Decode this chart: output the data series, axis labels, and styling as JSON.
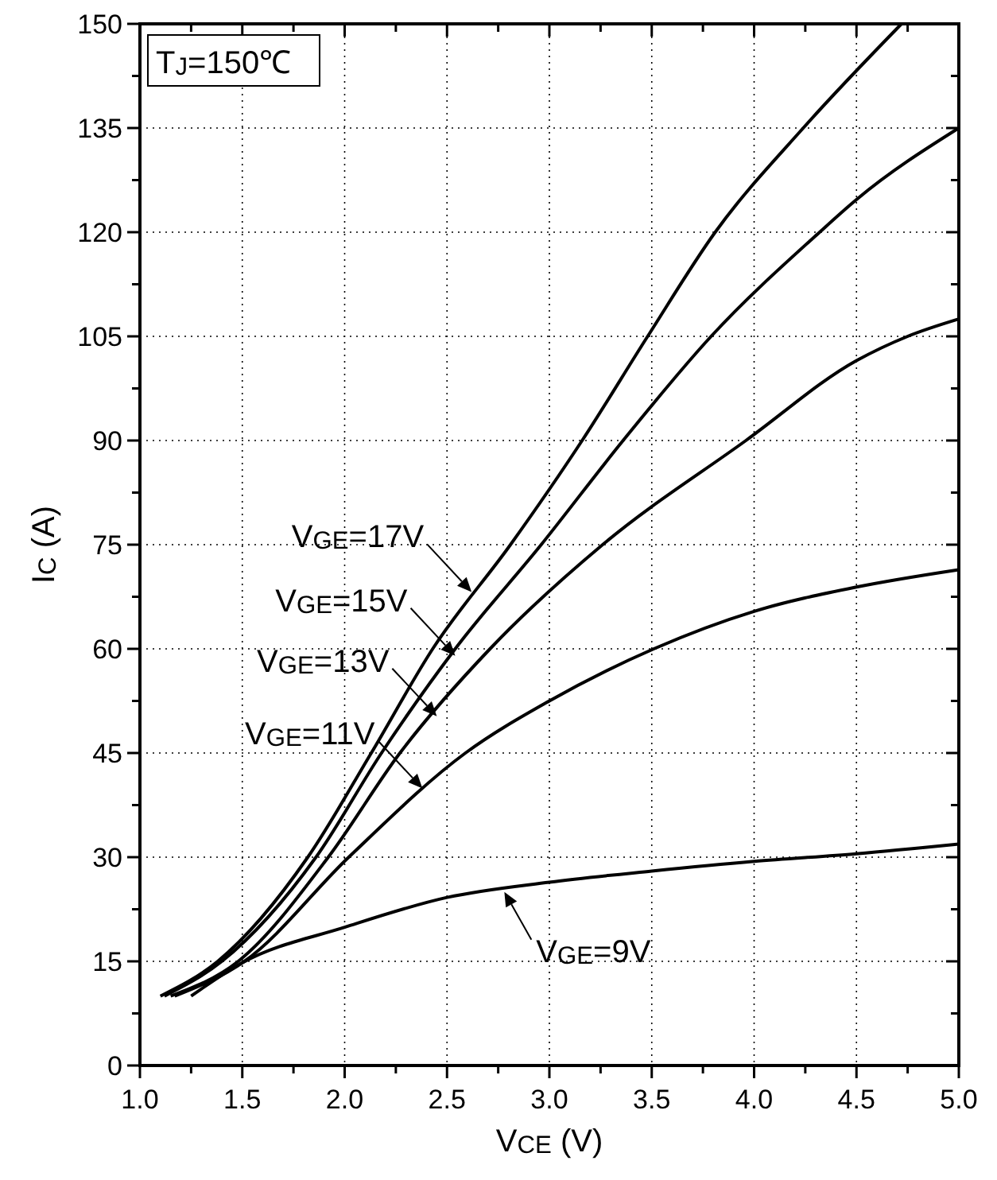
{
  "chart_data": {
    "type": "line",
    "xlabel": "V$_{CE}$ (V)",
    "ylabel": "I$_{C}$ (A)",
    "xlim": [
      1,
      5
    ],
    "ylim": [
      0,
      150
    ],
    "xticks": [
      {
        "value": 1,
        "label": "1.0"
      },
      {
        "value": 1.25,
        "label": null
      },
      {
        "value": 1.5,
        "label": "1.5"
      },
      {
        "value": 1.75,
        "label": null
      },
      {
        "value": 2,
        "label": "2.0"
      },
      {
        "value": 2.25,
        "label": null
      },
      {
        "value": 2.5,
        "label": "2.5"
      },
      {
        "value": 2.75,
        "label": null
      },
      {
        "value": 3,
        "label": "3.0"
      },
      {
        "value": 3.25,
        "label": null
      },
      {
        "value": 3.5,
        "label": "3.5"
      },
      {
        "value": 3.75,
        "label": null
      },
      {
        "value": 4,
        "label": "4.0"
      },
      {
        "value": 4.25,
        "label": null
      },
      {
        "value": 4.5,
        "label": "4.5"
      },
      {
        "value": 4.75,
        "label": null
      },
      {
        "value": 5,
        "label": "5.0"
      }
    ],
    "yticks": [
      0,
      {
        "value": 7.5,
        "label": null
      },
      15,
      {
        "value": 22.5,
        "label": null
      },
      30,
      {
        "value": 37.5,
        "label": null
      },
      45,
      {
        "value": 52.5,
        "label": null
      },
      60,
      {
        "value": 67.5,
        "label": null
      },
      75,
      {
        "value": 82.5,
        "label": null
      },
      90,
      {
        "value": 97.5,
        "label": null
      },
      105,
      {
        "value": 112.5,
        "label": null
      },
      120,
      {
        "value": 127.5,
        "label": null
      },
      135,
      {
        "value": 142.5,
        "label": null
      },
      150
    ],
    "grid": true,
    "marker": "none",
    "line_style": "solid",
    "series": [
      {
        "color": "#000000",
        "x": [
          1.1,
          1.38,
          1.82,
          2.13,
          2.43,
          2.81,
          3.16,
          3.48,
          3.81,
          4.24,
          4.72
        ],
        "values": [
          10,
          15,
          30,
          45,
          60,
          75,
          90,
          105,
          120,
          135,
          150
        ]
      },
      {
        "color": "#000000",
        "x": [
          1.12,
          1.4,
          1.86,
          2.18,
          2.54,
          2.96,
          3.36,
          3.79,
          4.32,
          4.5,
          5
        ],
        "values": [
          10,
          15,
          30,
          45,
          60,
          75,
          90,
          105,
          120,
          124.7,
          135
        ]
      },
      {
        "color": "#000000",
        "x": [
          1.15,
          1.48,
          1.92,
          2.27,
          2.71,
          3.26,
          3.96,
          4.5,
          4.75,
          5
        ],
        "values": [
          10,
          15,
          30,
          45,
          60,
          75,
          90,
          101.5,
          105,
          107.5
        ]
      },
      {
        "color": "#000000",
        "x": [
          1.17,
          1.51,
          2.02,
          2.59,
          3,
          3.51,
          4,
          4.5,
          5
        ],
        "values": [
          10,
          15,
          30,
          45,
          52.5,
          60,
          65.4,
          68.9,
          71.4
        ]
      },
      {
        "color": "#000000",
        "x": [
          1.25,
          1.5,
          2,
          2.5,
          3,
          3.5,
          4,
          4.5,
          5
        ],
        "values": [
          10,
          14.8,
          19.9,
          24.2,
          26.4,
          28,
          29.4,
          30.5,
          31.9
        ]
      }
    ],
    "annotations": [
      "T$_{J}$=150℃",
      {
        "text": "V$_{GE}$=17V",
        "x": 2.62,
        "y": 68.2
      },
      {
        "text": "V$_{GE}$=15V",
        "x": 2.54,
        "y": 59
      },
      {
        "text": "V$_{GE}$=13V",
        "x": 2.45,
        "y": 50.3
      },
      {
        "text": "V$_{GE}$=11V",
        "x": 2.38,
        "y": 39.9
      },
      {
        "text": "V$_{GE}$=9V",
        "x": 2.78,
        "y": 25
      }
    ]
  }
}
